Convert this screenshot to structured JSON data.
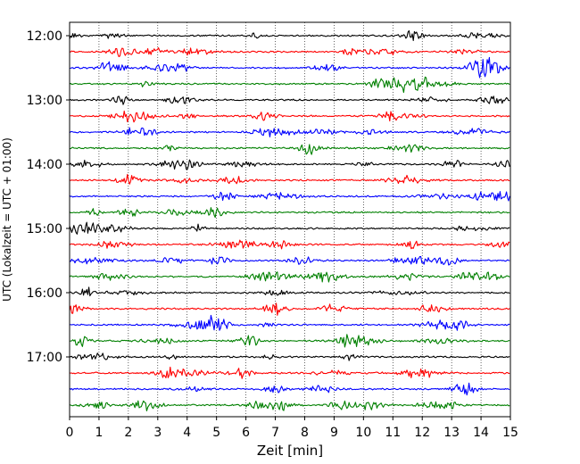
{
  "chart_data": {
    "type": "line",
    "title": "",
    "xlabel": "Zeit  [min]",
    "ylabel": "UTC (Lokalzeit = UTC + 01:00)",
    "xlim": [
      0,
      15
    ],
    "x_ticks": [
      "0",
      "1",
      "2",
      "3",
      "4",
      "5",
      "6",
      "7",
      "8",
      "9",
      "10",
      "11",
      "12",
      "13",
      "14",
      "15"
    ],
    "y_tick_labels": [
      "12:00",
      "13:00",
      "14:00",
      "15:00",
      "16:00",
      "17:00"
    ],
    "traces_per_hour": 4,
    "trace_count": 24,
    "trace_colors": [
      "#000000",
      "#ff0000",
      "#0000ff",
      "#008000"
    ],
    "grid": "vertical-dotted",
    "legend": "none"
  }
}
